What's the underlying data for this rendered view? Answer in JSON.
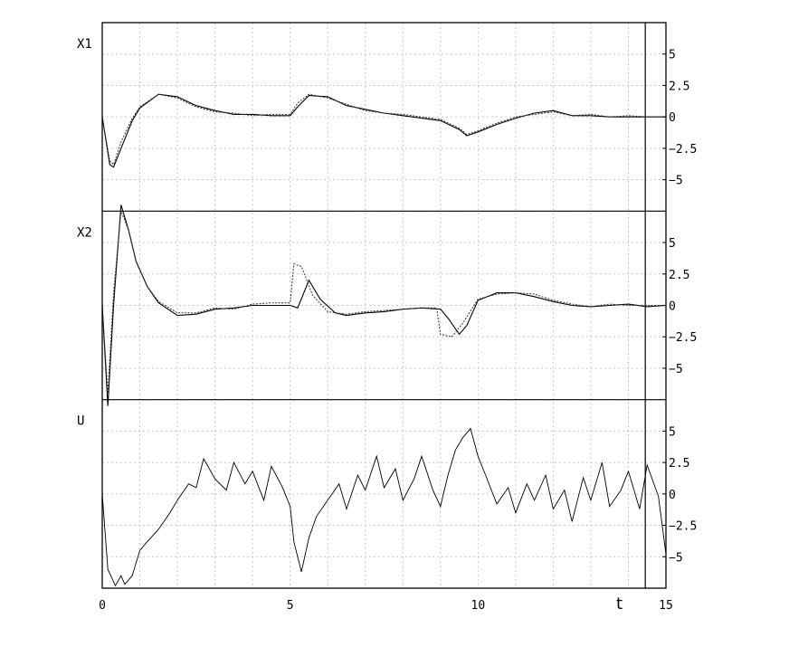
{
  "chart_data": {
    "type": "line",
    "x_axis": {
      "label": "t",
      "range": [
        0,
        15
      ],
      "ticks": [
        {
          "value": 0,
          "label": "0"
        },
        {
          "value": 5,
          "label": "5"
        },
        {
          "value": 10,
          "label": "10"
        },
        {
          "value": 15,
          "label": "15"
        }
      ]
    },
    "y_ticks": [
      {
        "value": 5,
        "label": "5"
      },
      {
        "value": 2.5,
        "label": "2.5"
      },
      {
        "value": 0,
        "label": "0"
      },
      {
        "value": -2.5,
        "label": "-2.5"
      },
      {
        "value": -5,
        "label": "-5"
      }
    ],
    "grid": true,
    "marker_line_t": 14.45,
    "panels": [
      {
        "label": "X1",
        "ylim": [
          -7.5,
          7.5
        ],
        "series": [
          {
            "style": "solid",
            "x": [
              0,
              0.2,
              0.3,
              0.5,
              0.8,
              1,
              1.5,
              2,
              2.5,
              3,
              3.5,
              4,
              4.5,
              5,
              5.2,
              5.5,
              6,
              6.5,
              7,
              7.5,
              8,
              8.5,
              9,
              9.5,
              9.7,
              10,
              10.5,
              11,
              11.5,
              12,
              12.5,
              13,
              13.5,
              14,
              14.5,
              15
            ],
            "y": [
              0,
              -3.8,
              -4,
              -2.5,
              -0.3,
              0.7,
              1.8,
              1.6,
              0.9,
              0.5,
              0.2,
              0.2,
              0.1,
              0.1,
              0.8,
              1.7,
              1.6,
              0.9,
              0.6,
              0.3,
              0.1,
              -0.1,
              -0.3,
              -1,
              -1.5,
              -1.2,
              -0.6,
              -0.1,
              0.3,
              0.5,
              0.1,
              0.1,
              0,
              0,
              0,
              0
            ]
          },
          {
            "style": "dotted",
            "x": [
              0,
              0.2,
              0.3,
              0.5,
              0.8,
              1,
              1.5,
              2,
              2.5,
              3,
              3.5,
              4,
              4.5,
              5,
              5.2,
              5.5,
              6,
              6.5,
              7,
              7.5,
              8,
              8.5,
              9,
              9.5,
              9.7,
              10,
              10.5,
              11,
              11.5,
              12,
              12.5,
              13,
              13.5,
              14,
              14.5,
              15
            ],
            "y": [
              0,
              -3.5,
              -3.8,
              -2,
              -0.1,
              0.8,
              1.8,
              1.5,
              0.8,
              0.4,
              0.3,
              0.1,
              0.2,
              0.2,
              1.1,
              1.8,
              1.5,
              1,
              0.5,
              0.3,
              0.2,
              0,
              -0.2,
              -0.9,
              -1.4,
              -1.1,
              -0.5,
              0,
              0.2,
              0.4,
              0.1,
              0.2,
              0,
              0.1,
              0,
              0
            ]
          }
        ]
      },
      {
        "label": "X2",
        "ylim": [
          -7.5,
          7.5
        ],
        "series": [
          {
            "style": "solid",
            "x": [
              0,
              0.15,
              0.3,
              0.5,
              0.7,
              0.9,
              1.2,
              1.5,
              2,
              2.5,
              3,
              3.5,
              4,
              4.5,
              5,
              5.2,
              5.5,
              5.8,
              6.2,
              6.5,
              7,
              7.5,
              8,
              8.5,
              9,
              9.2,
              9.5,
              9.7,
              10,
              10.5,
              11,
              11.5,
              12,
              12.5,
              13,
              13.5,
              14,
              14.5,
              15
            ],
            "y": [
              0,
              -8,
              0,
              8,
              6,
              3.5,
              1.5,
              0.2,
              -0.8,
              -0.7,
              -0.3,
              -0.2,
              0,
              0,
              0,
              -0.2,
              2,
              0.5,
              -0.6,
              -0.8,
              -0.6,
              -0.5,
              -0.3,
              -0.2,
              -0.3,
              -1,
              -2.3,
              -1.6,
              0.4,
              1,
              1,
              0.7,
              0.3,
              0,
              -0.1,
              0,
              0.1,
              -0.1,
              0
            ]
          },
          {
            "style": "dotted",
            "x": [
              0,
              0.15,
              0.3,
              0.5,
              0.7,
              0.9,
              1.2,
              1.5,
              2,
              2.5,
              3,
              3.5,
              4,
              4.5,
              5,
              5.1,
              5.3,
              5.6,
              6,
              6.5,
              7,
              7.5,
              8,
              8.5,
              8.9,
              9,
              9.3,
              9.6,
              10,
              10.5,
              11,
              11.5,
              12,
              12.5,
              13,
              13.5,
              14,
              14.5,
              15
            ],
            "y": [
              0,
              -7,
              1,
              7.5,
              6,
              3.5,
              1.5,
              0.3,
              -0.6,
              -0.6,
              -0.2,
              -0.3,
              0.1,
              0.2,
              0.2,
              3.3,
              3.1,
              0.8,
              -0.5,
              -0.7,
              -0.5,
              -0.4,
              -0.3,
              -0.2,
              -0.2,
              -2.3,
              -2.5,
              -1.4,
              0.5,
              0.9,
              1,
              0.9,
              0.4,
              0.1,
              -0.1,
              0.1,
              0,
              0,
              0
            ]
          }
        ]
      },
      {
        "label": "U",
        "ylim": [
          -7.5,
          7.5
        ],
        "series": [
          {
            "style": "solid",
            "x": [
              0,
              0.15,
              0.35,
              0.5,
              0.6,
              0.8,
              1,
              1.2,
              1.5,
              1.8,
              2,
              2.3,
              2.5,
              2.7,
              3,
              3.3,
              3.5,
              3.8,
              4,
              4.3,
              4.5,
              4.8,
              5,
              5.1,
              5.3,
              5.5,
              5.7,
              6,
              6.3,
              6.5,
              6.8,
              7,
              7.3,
              7.5,
              7.8,
              8,
              8.3,
              8.5,
              8.8,
              9,
              9.2,
              9.4,
              9.6,
              9.8,
              10,
              10.2,
              10.5,
              10.8,
              11,
              11.3,
              11.5,
              11.8,
              12,
              12.3,
              12.5,
              12.8,
              13,
              13.3,
              13.5,
              13.8,
              14,
              14.3,
              14.5,
              14.8,
              15
            ],
            "y": [
              0,
              -6,
              -7.3,
              -6.5,
              -7.2,
              -6.5,
              -4.5,
              -3.8,
              -2.8,
              -1.5,
              -0.5,
              0.8,
              0.5,
              2.8,
              1.2,
              0.3,
              2.5,
              0.8,
              1.8,
              -0.5,
              2.2,
              0.5,
              -1,
              -3.8,
              -6.2,
              -3.5,
              -1.8,
              -0.5,
              0.8,
              -1.2,
              1.5,
              0.3,
              3,
              0.5,
              2,
              -0.5,
              1.2,
              3,
              0.3,
              -1,
              1.5,
              3.5,
              4.5,
              5.2,
              3,
              1.5,
              -0.8,
              0.5,
              -1.5,
              0.8,
              -0.5,
              1.5,
              -1.2,
              0.3,
              -2.2,
              1.3,
              -0.5,
              2.5,
              -1,
              0.3,
              1.8,
              -1.2,
              2.3,
              -0.2,
              -4.8
            ]
          }
        ]
      }
    ]
  }
}
